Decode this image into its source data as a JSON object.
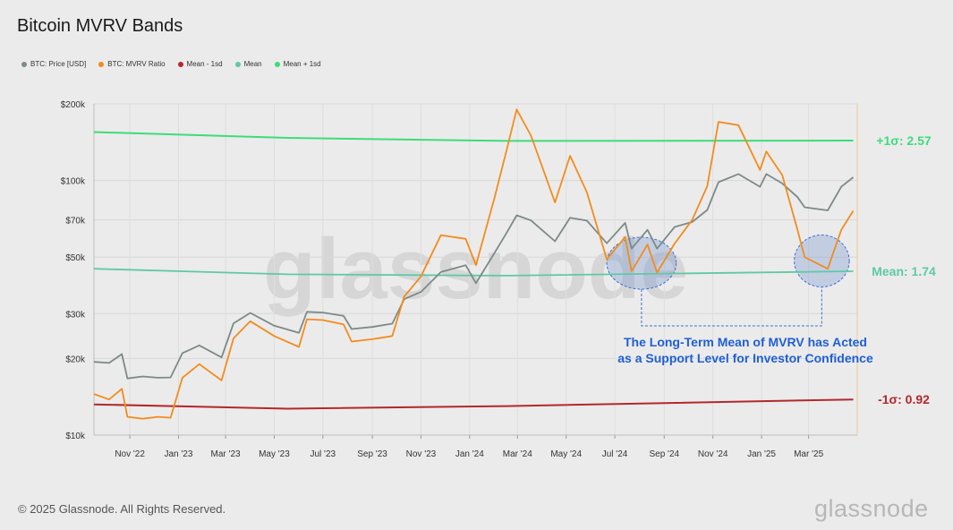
{
  "title": "Bitcoin MVRV Bands",
  "legend": [
    {
      "label": "BTC: Price [USD]",
      "color": "#7d8a86"
    },
    {
      "label": "BTC: MVRV Ratio",
      "color": "#f28c1d"
    },
    {
      "label": "Mean - 1sd",
      "color": "#b3282c"
    },
    {
      "label": "Mean",
      "color": "#5ec9a6"
    },
    {
      "label": "Mean + 1sd",
      "color": "#3ddc7a"
    }
  ],
  "watermark": "glassnode",
  "footer": "© 2025 Glassnode. All Rights Reserved.",
  "brand": "glassnode",
  "chart_data": {
    "type": "line",
    "title": "Bitcoin MVRV Bands",
    "y_scale": "log",
    "ylim": [
      10000,
      200000
    ],
    "y_ticks": [
      {
        "value": 10000,
        "label": "$10k"
      },
      {
        "value": 20000,
        "label": "$20k"
      },
      {
        "value": 30000,
        "label": "$30k"
      },
      {
        "value": 50000,
        "label": "$50k"
      },
      {
        "value": 70000,
        "label": "$70k"
      },
      {
        "value": 100000,
        "label": "$100k"
      },
      {
        "value": 200000,
        "label": "$200k"
      }
    ],
    "xlim": [
      "2022-10-01",
      "2025-05-15"
    ],
    "x_ticks": [
      {
        "date": "2022-11-15",
        "label": "Nov '22"
      },
      {
        "date": "2023-01-15",
        "label": "Jan '23"
      },
      {
        "date": "2023-03-15",
        "label": "Mar '23"
      },
      {
        "date": "2023-05-15",
        "label": "May '23"
      },
      {
        "date": "2023-07-15",
        "label": "Jul '23"
      },
      {
        "date": "2023-09-15",
        "label": "Sep '23"
      },
      {
        "date": "2023-11-15",
        "label": "Nov '23"
      },
      {
        "date": "2024-01-15",
        "label": "Jan '24"
      },
      {
        "date": "2024-03-15",
        "label": "Mar '24"
      },
      {
        "date": "2024-05-15",
        "label": "May '24"
      },
      {
        "date": "2024-07-15",
        "label": "Jul '24"
      },
      {
        "date": "2024-09-15",
        "label": "Sep '24"
      },
      {
        "date": "2024-11-15",
        "label": "Nov '24"
      },
      {
        "date": "2025-01-15",
        "label": "Jan '25"
      },
      {
        "date": "2025-03-15",
        "label": "Mar '25"
      }
    ],
    "grid": true,
    "legend_position": "top-left",
    "series": [
      {
        "name": "BTC: Price [USD]",
        "color": "#7d8a86",
        "points": [
          [
            "2022-10-01",
            19400
          ],
          [
            "2022-10-20",
            19200
          ],
          [
            "2022-11-05",
            20800
          ],
          [
            "2022-11-12",
            16700
          ],
          [
            "2022-12-01",
            17000
          ],
          [
            "2022-12-20",
            16800
          ],
          [
            "2023-01-05",
            16850
          ],
          [
            "2023-01-20",
            21000
          ],
          [
            "2023-02-10",
            22500
          ],
          [
            "2023-03-10",
            20200
          ],
          [
            "2023-03-25",
            27500
          ],
          [
            "2023-04-15",
            30200
          ],
          [
            "2023-05-15",
            26900
          ],
          [
            "2023-06-15",
            25200
          ],
          [
            "2023-06-25",
            30500
          ],
          [
            "2023-07-15",
            30300
          ],
          [
            "2023-08-10",
            29400
          ],
          [
            "2023-08-20",
            26100
          ],
          [
            "2023-09-15",
            26600
          ],
          [
            "2023-10-10",
            27400
          ],
          [
            "2023-10-25",
            34200
          ],
          [
            "2023-11-15",
            36500
          ],
          [
            "2023-12-10",
            43700
          ],
          [
            "2024-01-10",
            46500
          ],
          [
            "2024-01-23",
            39500
          ],
          [
            "2024-02-15",
            51800
          ],
          [
            "2024-03-01",
            62000
          ],
          [
            "2024-03-14",
            73000
          ],
          [
            "2024-04-01",
            69700
          ],
          [
            "2024-05-01",
            57700
          ],
          [
            "2024-05-20",
            71400
          ],
          [
            "2024-06-10",
            69600
          ],
          [
            "2024-07-05",
            56700
          ],
          [
            "2024-07-28",
            68200
          ],
          [
            "2024-08-05",
            54000
          ],
          [
            "2024-08-25",
            64000
          ],
          [
            "2024-09-06",
            54000
          ],
          [
            "2024-09-28",
            65700
          ],
          [
            "2024-10-20",
            68700
          ],
          [
            "2024-11-08",
            76600
          ],
          [
            "2024-11-22",
            98500
          ],
          [
            "2024-12-17",
            106000
          ],
          [
            "2025-01-13",
            94500
          ],
          [
            "2025-01-21",
            106000
          ],
          [
            "2025-02-10",
            97400
          ],
          [
            "2025-03-01",
            86000
          ],
          [
            "2025-03-10",
            78500
          ],
          [
            "2025-04-08",
            76300
          ],
          [
            "2025-04-25",
            94500
          ],
          [
            "2025-05-10",
            103000
          ]
        ]
      },
      {
        "name": "BTC: MVRV Ratio",
        "color": "#f28c1d",
        "points": [
          [
            "2022-10-01",
            14500
          ],
          [
            "2022-10-20",
            13800
          ],
          [
            "2022-11-05",
            15200
          ],
          [
            "2022-11-12",
            11800
          ],
          [
            "2022-12-01",
            11600
          ],
          [
            "2022-12-20",
            11800
          ],
          [
            "2023-01-05",
            11700
          ],
          [
            "2023-01-20",
            16800
          ],
          [
            "2023-02-10",
            19000
          ],
          [
            "2023-03-10",
            16400
          ],
          [
            "2023-03-25",
            24000
          ],
          [
            "2023-04-15",
            28000
          ],
          [
            "2023-05-15",
            24500
          ],
          [
            "2023-06-15",
            22200
          ],
          [
            "2023-06-25",
            28500
          ],
          [
            "2023-07-15",
            28300
          ],
          [
            "2023-08-10",
            27200
          ],
          [
            "2023-08-20",
            23300
          ],
          [
            "2023-09-15",
            23800
          ],
          [
            "2023-10-10",
            24500
          ],
          [
            "2023-10-25",
            35000
          ],
          [
            "2023-11-15",
            42000
          ],
          [
            "2023-12-10",
            61000
          ],
          [
            "2024-01-10",
            59000
          ],
          [
            "2024-01-23",
            46500
          ],
          [
            "2024-02-15",
            85000
          ],
          [
            "2024-03-01",
            130000
          ],
          [
            "2024-03-14",
            190000
          ],
          [
            "2024-04-01",
            150000
          ],
          [
            "2024-05-01",
            82000
          ],
          [
            "2024-05-20",
            125000
          ],
          [
            "2024-06-10",
            90000
          ],
          [
            "2024-07-05",
            49000
          ],
          [
            "2024-07-28",
            60000
          ],
          [
            "2024-08-05",
            44000
          ],
          [
            "2024-08-25",
            56000
          ],
          [
            "2024-09-06",
            43500
          ],
          [
            "2024-09-28",
            56500
          ],
          [
            "2024-10-20",
            70000
          ],
          [
            "2024-11-08",
            95000
          ],
          [
            "2024-11-22",
            170000
          ],
          [
            "2024-12-17",
            165000
          ],
          [
            "2025-01-13",
            110000
          ],
          [
            "2025-01-21",
            130000
          ],
          [
            "2025-02-10",
            105000
          ],
          [
            "2025-03-01",
            64000
          ],
          [
            "2025-03-10",
            50000
          ],
          [
            "2025-04-08",
            45000
          ],
          [
            "2025-04-25",
            64000
          ],
          [
            "2025-05-10",
            76000
          ]
        ]
      },
      {
        "name": "Mean - 1sd",
        "color": "#b3282c",
        "points": [
          [
            "2022-10-01",
            13200
          ],
          [
            "2023-06-01",
            12700
          ],
          [
            "2024-03-01",
            13000
          ],
          [
            "2025-05-10",
            13800
          ]
        ]
      },
      {
        "name": "Mean",
        "color": "#5ec9a6",
        "points": [
          [
            "2022-10-01",
            45000
          ],
          [
            "2023-06-01",
            42800
          ],
          [
            "2024-03-01",
            42300
          ],
          [
            "2025-05-10",
            44000
          ]
        ]
      },
      {
        "name": "Mean + 1sd",
        "color": "#3ddc7a",
        "points": [
          [
            "2022-10-01",
            155000
          ],
          [
            "2023-06-01",
            147000
          ],
          [
            "2024-03-01",
            143000
          ],
          [
            "2025-05-10",
            143500
          ]
        ]
      }
    ],
    "band_labels": [
      {
        "text": "+1σ: 2.57",
        "color": "#3ddc7a",
        "value": 143500
      },
      {
        "text": "Mean: 1.74",
        "color": "#5ec9a6",
        "value": 44000
      },
      {
        "text": "-1σ: 0.92",
        "color": "#b3282c",
        "value": 13800
      }
    ],
    "annotation": {
      "lines": [
        "The Long-Term Mean of MVRV has Acted",
        "as a Support Level for Investor Confidence"
      ],
      "color": "#1f5fd6",
      "highlights": [
        {
          "start": "2024-07-05",
          "end": "2024-09-30"
        },
        {
          "start": "2025-02-25",
          "end": "2025-05-05"
        }
      ]
    }
  }
}
